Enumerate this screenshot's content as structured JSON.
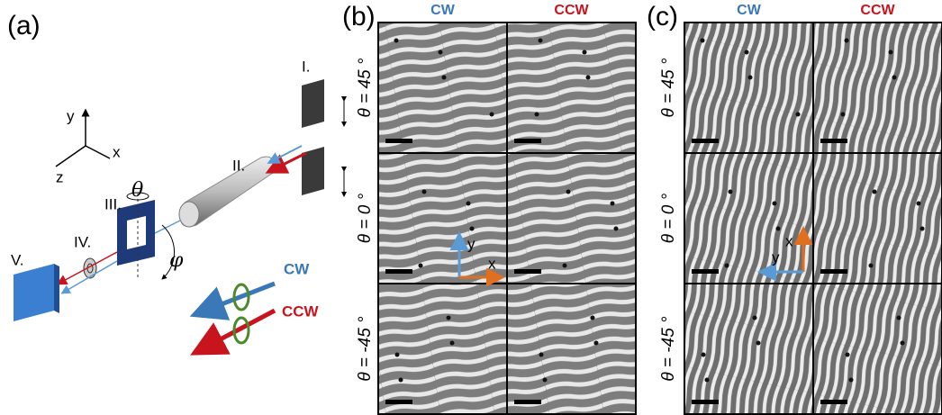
{
  "panel_a": {
    "label": "(a)",
    "axes": [
      "y",
      "x",
      "z"
    ],
    "components": [
      "I.",
      "II.",
      "III.",
      "IV.",
      "V."
    ],
    "angles": [
      "θ",
      "φ"
    ],
    "legend": [
      "CW",
      "CCW"
    ]
  },
  "panel_b": {
    "label": "(b)",
    "columns": [
      "CW",
      "CCW"
    ],
    "rows": [
      "θ = 45 °",
      "θ = 0 °",
      "θ = -45 °"
    ],
    "inset_axes": [
      "y",
      "x"
    ]
  },
  "panel_c": {
    "label": "(c)",
    "columns": [
      "CW",
      "CCW"
    ],
    "rows": [
      "θ = 45 °",
      "θ = 0 °",
      "θ = -45 °"
    ],
    "inset_axes": [
      "x",
      "y"
    ]
  }
}
